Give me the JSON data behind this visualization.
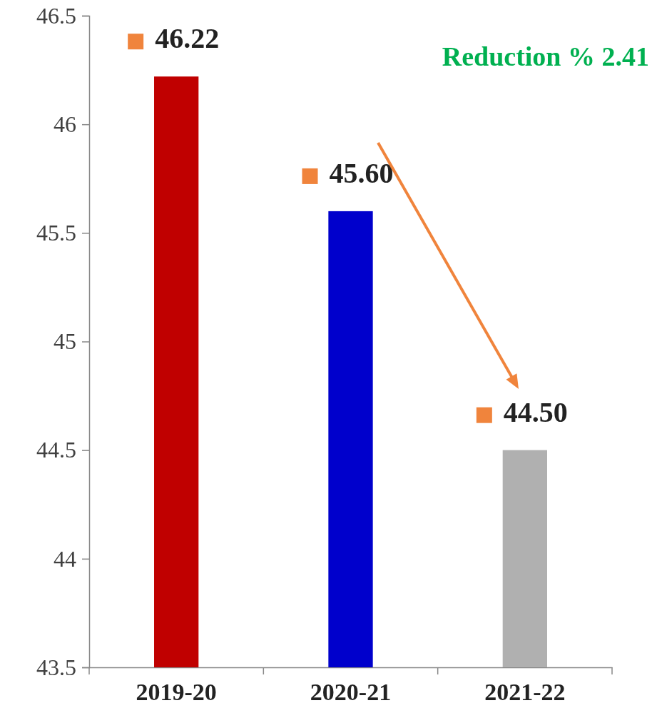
{
  "chart_data": {
    "type": "bar",
    "categories": [
      "2019-20",
      "2020-21",
      "2021-22"
    ],
    "values": [
      46.22,
      45.6,
      44.5
    ],
    "colors": [
      "#c00000",
      "#0000cc",
      "#b0b0b0"
    ],
    "value_labels": [
      "46.22",
      "45.60",
      "44.50"
    ],
    "ylim": [
      43.5,
      46.5
    ],
    "yticks": [
      43.5,
      44,
      44.5,
      45,
      45.5,
      46,
      46.5
    ],
    "grid": false,
    "annotations": [
      "Reduction % 2.41"
    ]
  }
}
